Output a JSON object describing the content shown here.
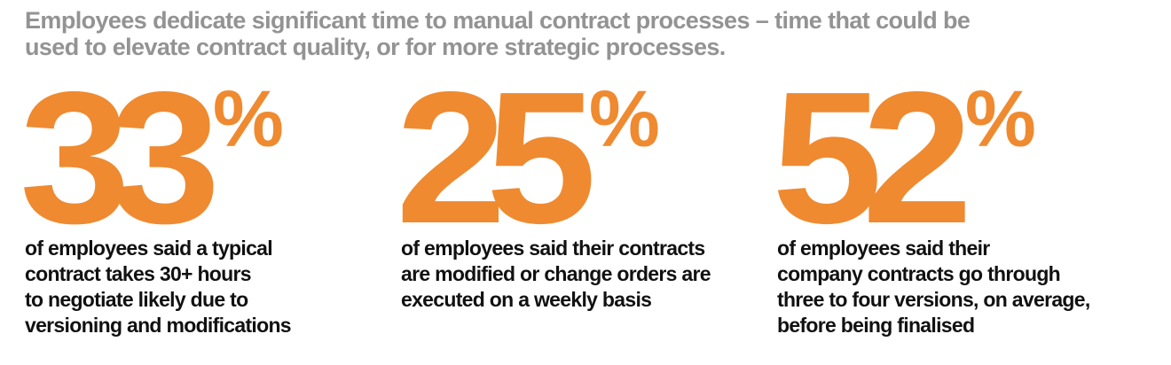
{
  "headline": {
    "line1": "Employees dedicate significant time to manual contract processes – time that could be",
    "line2": "used to elevate contract quality, or for more strategic processes."
  },
  "stats": [
    {
      "value": "33",
      "unit": "%",
      "description": [
        "of employees said a typical",
        "contract takes 30+ hours",
        "to negotiate likely due to",
        "versioning and modifications"
      ]
    },
    {
      "value": "25",
      "unit": "%",
      "description": [
        "of employees said their contracts",
        "are modified or change orders are",
        "executed on a weekly basis"
      ]
    },
    {
      "value": "52",
      "unit": "%",
      "description": [
        "of employees said their",
        "company contracts go through",
        "three to four versions, on average,",
        "before being finalised"
      ]
    }
  ],
  "colors": {
    "accent": "#ef8a30",
    "headline": "#939393",
    "body_text": "#111111"
  }
}
